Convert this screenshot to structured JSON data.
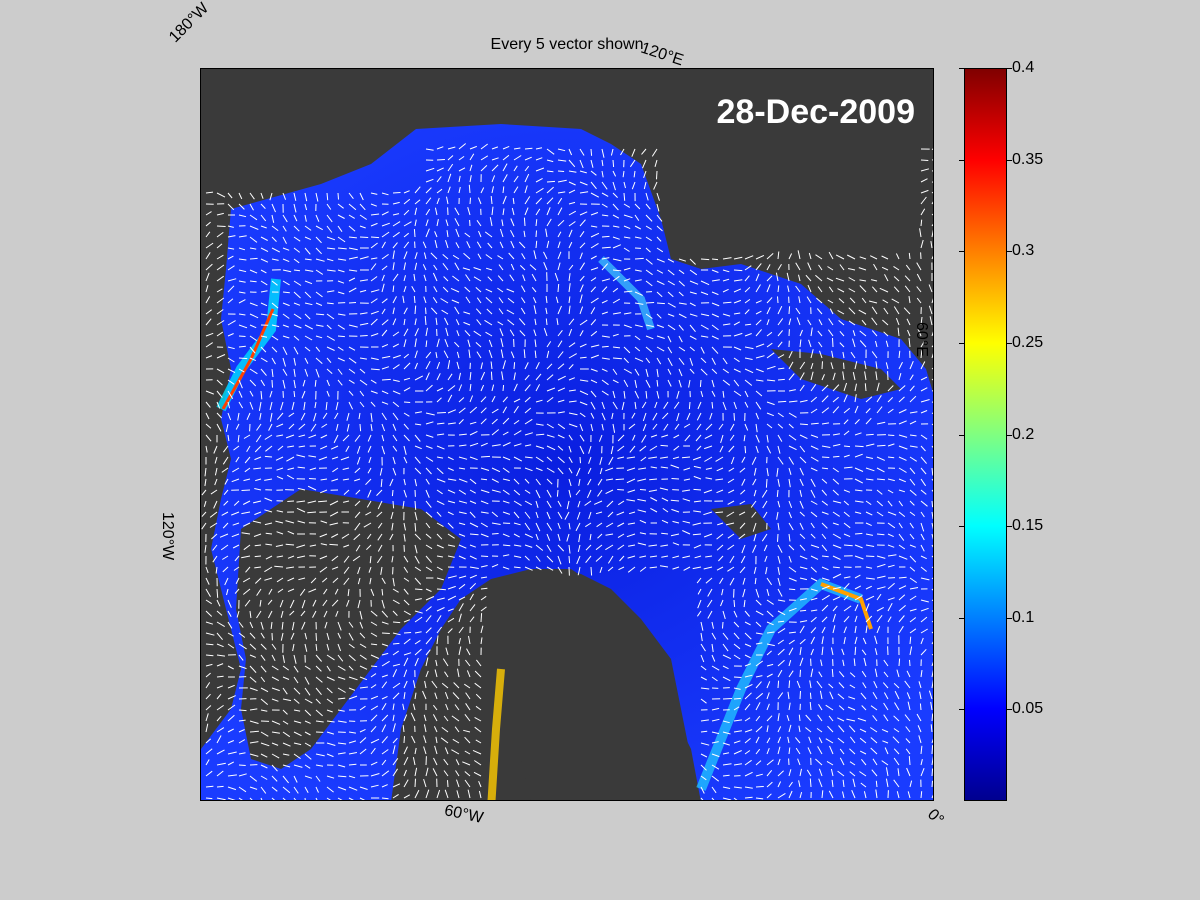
{
  "title": "Every 5 vector shown",
  "date": "28-Dec-2009",
  "longitude_labels": {
    "w180": "180°W",
    "e120": "120°E",
    "e60": "60°E",
    "w120": "120°W",
    "w60": "60°W",
    "zero": "0°"
  },
  "colorbar": {
    "ticks": [
      "0.4",
      "0.35",
      "0.3",
      "0.25",
      "0.2",
      "0.15",
      "0.1",
      "0.05"
    ],
    "tick_values": [
      0.4,
      0.35,
      0.3,
      0.25,
      0.2,
      0.15,
      0.1,
      0.05
    ],
    "range": [
      0,
      0.4
    ],
    "colormap": "jet"
  },
  "colors": {
    "background": "#cccccc",
    "land": "#3a3a3a",
    "ocean_low": "#0a1fe0",
    "ocean_mid": "#1e5cff",
    "vector": "#ffffff"
  }
}
